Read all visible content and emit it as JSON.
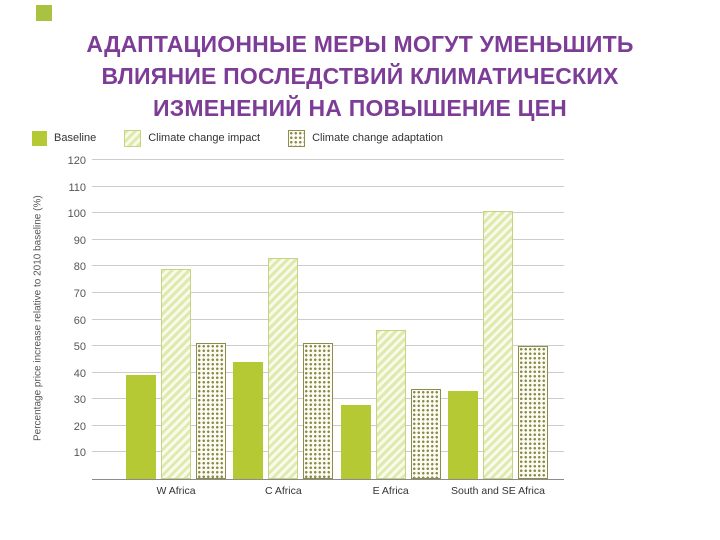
{
  "slide": {
    "title_lines": [
      "АДАПТАЦИОННЫЕ МЕРЫ МОГУТ УМЕНЬШИТЬ",
      "ВЛИЯНИЕ ПОСЛЕДСТВИЙ КЛИМАТИЧЕСКИХ",
      "ИЗМЕНЕНИЙ НА ПОВЫШЕНИЕ ЦЕН"
    ],
    "title_color": "#7d3d97",
    "accent_color": "#a9c23f"
  },
  "chart_data": {
    "type": "bar",
    "title": "",
    "xlabel": "",
    "ylabel": "Percentage price increase relative to 2010 baseline (%)",
    "categories": [
      "W Africa",
      "C Africa",
      "E Africa",
      "South and SE Africa"
    ],
    "series": [
      {
        "name": "Baseline",
        "values": [
          39,
          44,
          28,
          33
        ],
        "style": "solid",
        "color": "#b5c934"
      },
      {
        "name": "Climate change impact",
        "values": [
          79,
          83,
          56,
          101
        ],
        "style": "diagonal-hatch",
        "color": "#e0eaae"
      },
      {
        "name": "Climate change adaptation",
        "values": [
          51,
          51,
          34,
          50
        ],
        "style": "dotted",
        "color": "#8c8c4e"
      }
    ],
    "ylim": [
      0,
      120
    ],
    "yticks": [
      10,
      20,
      30,
      40,
      50,
      60,
      70,
      80,
      90,
      100,
      110,
      120
    ],
    "grid": true,
    "legend_position": "top-left"
  }
}
